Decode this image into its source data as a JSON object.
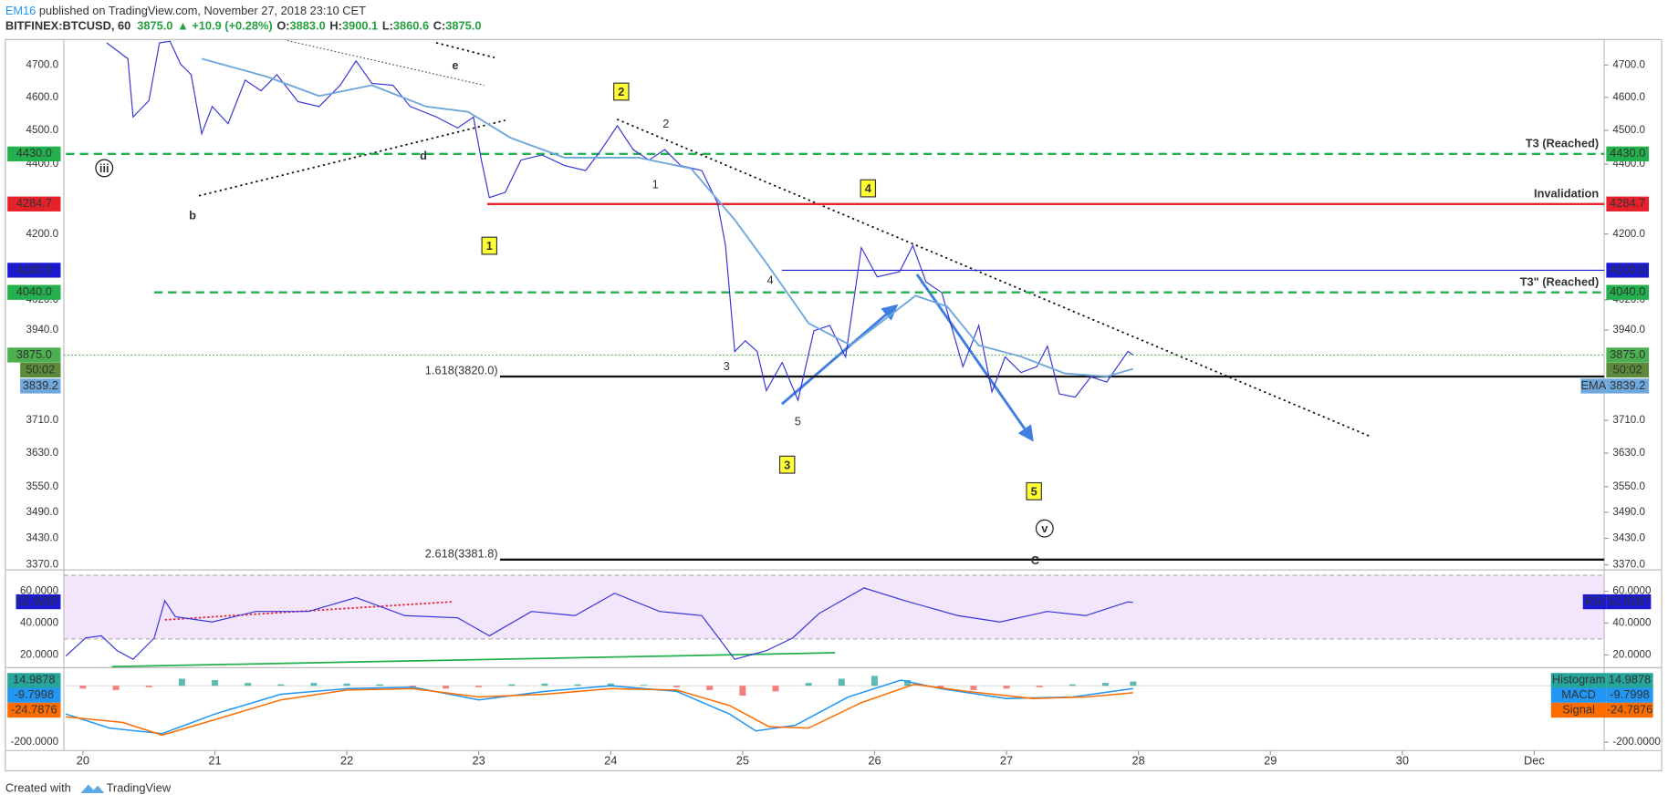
{
  "header": {
    "author": "EM16",
    "published": " published on TradingView.com, November 27, 2018 23:10 CET",
    "symbol": "BITFINEX:BTCUSD, 60",
    "last": "3875.0",
    "change": "▲ +10.9 (+0.28%)",
    "ohlc": [
      {
        "label": "O:",
        "value": "3883.0"
      },
      {
        "label": "H:",
        "value": "3900.1"
      },
      {
        "label": "L:",
        "value": "3860.6"
      },
      {
        "label": "C:",
        "value": "3875.0"
      }
    ]
  },
  "footer": {
    "text": "Created with",
    "brand": "TradingView"
  },
  "chart_data": [
    {
      "type": "line",
      "log_scale": true,
      "countdown": "50:02",
      "xlim": [
        19.855,
        31.53
      ],
      "xticks": [
        20,
        21,
        22,
        23,
        24,
        25,
        26,
        27,
        28,
        29,
        30,
        {
          "value": 31,
          "label": "Dec"
        }
      ],
      "ylim": [
        3361,
        4777
      ],
      "yticks": [
        {
          "value": 4700,
          "label": "4700.0"
        },
        {
          "value": 4600,
          "label": "4600.0"
        },
        {
          "value": 4500,
          "label": "4500.0"
        },
        {
          "value": 4400,
          "label": "4400.0"
        },
        {
          "value": 4200,
          "label": "4200.0"
        },
        {
          "value": 4020,
          "label": "4020.0"
        },
        {
          "value": 3940,
          "label": "3940.0"
        },
        {
          "value": 3710,
          "label": "3710.0"
        },
        {
          "value": 3630,
          "label": "3630.0"
        },
        {
          "value": 3550,
          "label": "3550.0"
        },
        {
          "value": 3490,
          "label": "3490.0"
        },
        {
          "value": 3430,
          "label": "3430.0"
        },
        {
          "value": 3370,
          "label": "3370.0"
        }
      ],
      "series": [
        {
          "name": "BTCUSD",
          "color": "#3434d6",
          "x": [
            20.18,
            20.34,
            20.38,
            20.5,
            20.58,
            20.66,
            20.74,
            20.82,
            20.9,
            20.98,
            21.1,
            21.23,
            21.35,
            21.47,
            21.63,
            21.79,
            21.95,
            22.07,
            22.19,
            22.35,
            22.48,
            22.68,
            22.84,
            22.96,
            23.02,
            23.08,
            23.2,
            23.32,
            23.48,
            23.65,
            23.81,
            23.93,
            24.05,
            24.17,
            24.29,
            24.41,
            24.53,
            24.69,
            24.81,
            24.87,
            24.94,
            25.02,
            25.11,
            25.18,
            25.3,
            25.42,
            25.54,
            25.66,
            25.78,
            25.9,
            26.02,
            26.19,
            26.29,
            26.39,
            26.51,
            26.67,
            26.79,
            26.89,
            26.99,
            27.11,
            27.23,
            27.31,
            27.4,
            27.52,
            27.64,
            27.76,
            27.84,
            27.92,
            27.96
          ],
          "values": [
            4770,
            4720,
            4540,
            4590,
            4770,
            4775,
            4703,
            4670,
            4490,
            4572,
            4520,
            4653,
            4620,
            4670,
            4587,
            4572,
            4637,
            4713,
            4643,
            4637,
            4572,
            4540,
            4507,
            4540,
            4412,
            4303,
            4318,
            4412,
            4427,
            4396,
            4381,
            4443,
            4514,
            4443,
            4412,
            4443,
            4396,
            4381,
            4288,
            4168,
            3884,
            3912,
            3884,
            3784,
            3856,
            3760,
            3938,
            3952,
            3870,
            4162,
            4082,
            4096,
            4168,
            4068,
            4039,
            3845,
            3952,
            3781,
            3870,
            3830,
            3845,
            3898,
            3776,
            3768,
            3819,
            3806,
            3845,
            3884,
            3875
          ]
        },
        {
          "name": "EMA",
          "color": "#6fa8dc",
          "x": [
            20.9,
            21.39,
            21.79,
            22.19,
            22.6,
            22.92,
            23.24,
            23.65,
            24.21,
            24.61,
            24.94,
            25.18,
            25.5,
            25.82,
            26.15,
            26.31,
            26.55,
            26.79,
            27.11,
            27.44,
            27.76,
            27.96
          ],
          "values": [
            4720,
            4664,
            4604,
            4637,
            4572,
            4556,
            4478,
            4419,
            4419,
            4387,
            4240,
            4120,
            3958,
            3900,
            3987,
            4031,
            4002,
            3900,
            3871,
            3828,
            3820,
            3839.2
          ]
        }
      ],
      "levels": [
        {
          "value": 4430,
          "label": "4430.0",
          "text": "T3 (Reached)",
          "color": "#22b14c",
          "style": "dashed"
        },
        {
          "value": 4284.7,
          "label": "4284.7",
          "text": "Invalidation",
          "color": "#e8202a",
          "style": "solid"
        },
        {
          "value": 4100,
          "label": "4100.0",
          "color": "#1a1ad0",
          "style": "thin"
        },
        {
          "value": 4040,
          "label": "4040.0",
          "text": "T3\" (Reached)",
          "color": "#22b14c",
          "style": "dashed"
        },
        {
          "value": 3875,
          "label": "3875.0",
          "color": "#4caf50",
          "style": "dotted"
        },
        {
          "value": 3820,
          "text": "1.618(3820.0)",
          "color": "#111111",
          "style": "solid"
        },
        {
          "value": 3381.8,
          "text": "2.618(3381.8)",
          "color": "#111111",
          "style": "solid"
        }
      ],
      "annotations": [
        {
          "text": "e",
          "color": "#e8202a",
          "style": "plain"
        },
        {
          "text": "d",
          "color": "#e8202a",
          "style": "plain"
        },
        {
          "text": "b",
          "color": "#e8202a",
          "style": "plain"
        },
        {
          "text": "iii",
          "color": "#111111",
          "style": "circle"
        },
        {
          "text": "1",
          "color": "#111111",
          "style": "box"
        },
        {
          "text": "2",
          "color": "#111111",
          "style": "box"
        },
        {
          "text": "3",
          "color": "#111111",
          "style": "box"
        },
        {
          "text": "4",
          "color": "#111111",
          "style": "box"
        },
        {
          "text": "5",
          "color": "#111111",
          "style": "box"
        },
        {
          "text": "1",
          "color": "#a020a0",
          "style": "purple"
        },
        {
          "text": "2",
          "color": "#a020a0",
          "style": "purple"
        },
        {
          "text": "3",
          "color": "#a020a0",
          "style": "purple"
        },
        {
          "text": "4",
          "color": "#a020a0",
          "style": "purple"
        },
        {
          "text": "5",
          "color": "#a020a0",
          "style": "purple"
        },
        {
          "text": "v",
          "color": "#111111",
          "style": "circle"
        },
        {
          "text": "C",
          "color": "#e8202a",
          "style": "big"
        }
      ]
    },
    {
      "type": "line",
      "ylim": [
        12.7,
        72
      ],
      "band": [
        30,
        70
      ],
      "yticks": [
        {
          "value": 60,
          "label": "60.0000"
        },
        {
          "value": 40,
          "label": "40.0000"
        },
        {
          "value": 20,
          "label": "20.0000"
        }
      ],
      "series": [
        {
          "name": "RSI",
          "color": "#3434d6",
          "x": [
            19.87,
            20.02,
            20.14,
            20.26,
            20.38,
            20.54,
            20.62,
            20.7,
            20.98,
            21.31,
            21.71,
            22.07,
            22.44,
            22.84,
            23.08,
            23.4,
            23.73,
            24.03,
            24.37,
            24.69,
            24.94,
            25.18,
            25.38,
            25.58,
            25.92,
            26.23,
            26.63,
            26.95,
            27.31,
            27.6,
            27.92,
            27.96
          ],
          "values": [
            19.3,
            30.7,
            32,
            22.7,
            17.3,
            30.7,
            54,
            44,
            40.7,
            47.3,
            47.3,
            56,
            44.7,
            43.3,
            32,
            47.3,
            44.7,
            58.7,
            47.3,
            44.7,
            17.3,
            22.7,
            30.7,
            46,
            62,
            54,
            44.7,
            40.7,
            47.3,
            44.7,
            53.3,
            52.9287
          ]
        }
      ]
    },
    {
      "type": "combo",
      "ylim": [
        -226,
        56.6
      ],
      "yticks": [
        {
          "value": -200,
          "label": "-200.0000"
        }
      ],
      "series": [
        {
          "name": "Histogram",
          "type": "bar",
          "color": "#26a69a",
          "negative_color": "#ef5350",
          "x": [
            20,
            20.25,
            20.5,
            20.75,
            21,
            21.25,
            21.5,
            21.75,
            22,
            22.25,
            22.5,
            22.75,
            23,
            23.25,
            23.5,
            23.75,
            24,
            24.25,
            24.5,
            24.75,
            25,
            25.25,
            25.5,
            25.75,
            26,
            26.25,
            26.5,
            26.75,
            27,
            27.25,
            27.5,
            27.75,
            27.96
          ],
          "values": [
            -10,
            -15,
            -5,
            25,
            20,
            10,
            5,
            10,
            8,
            5,
            -5,
            -10,
            -5,
            5,
            8,
            5,
            8,
            3,
            -5,
            -15,
            -35,
            -20,
            10,
            25,
            35,
            20,
            -10,
            -15,
            -10,
            -5,
            5,
            10,
            14.9878
          ]
        },
        {
          "name": "MACD",
          "type": "line",
          "color": "#2196f3",
          "x": [
            19.87,
            20.2,
            20.6,
            21.0,
            21.5,
            22.0,
            22.5,
            23.0,
            23.5,
            24.0,
            24.5,
            24.9,
            25.1,
            25.4,
            25.8,
            26.2,
            26.5,
            27.0,
            27.5,
            27.96
          ],
          "values": [
            -100,
            -150,
            -170,
            -100,
            -30,
            -10,
            -5,
            -50,
            -20,
            0,
            -20,
            -100,
            -160,
            -140,
            -40,
            20,
            -10,
            -45,
            -40,
            -9.7998
          ]
        },
        {
          "name": "Signal",
          "type": "line",
          "color": "#ff6d00",
          "x": [
            19.87,
            20.3,
            20.6,
            21.0,
            21.5,
            22.0,
            22.5,
            23.0,
            23.5,
            24.0,
            24.5,
            24.9,
            25.2,
            25.5,
            25.9,
            26.3,
            26.7,
            27.2,
            27.6,
            27.96
          ],
          "values": [
            -110,
            -130,
            -175,
            -120,
            -50,
            -15,
            -10,
            -40,
            -30,
            -10,
            -15,
            -70,
            -145,
            -150,
            -60,
            5,
            -20,
            -45,
            -40,
            -24.7876
          ]
        }
      ]
    }
  ]
}
